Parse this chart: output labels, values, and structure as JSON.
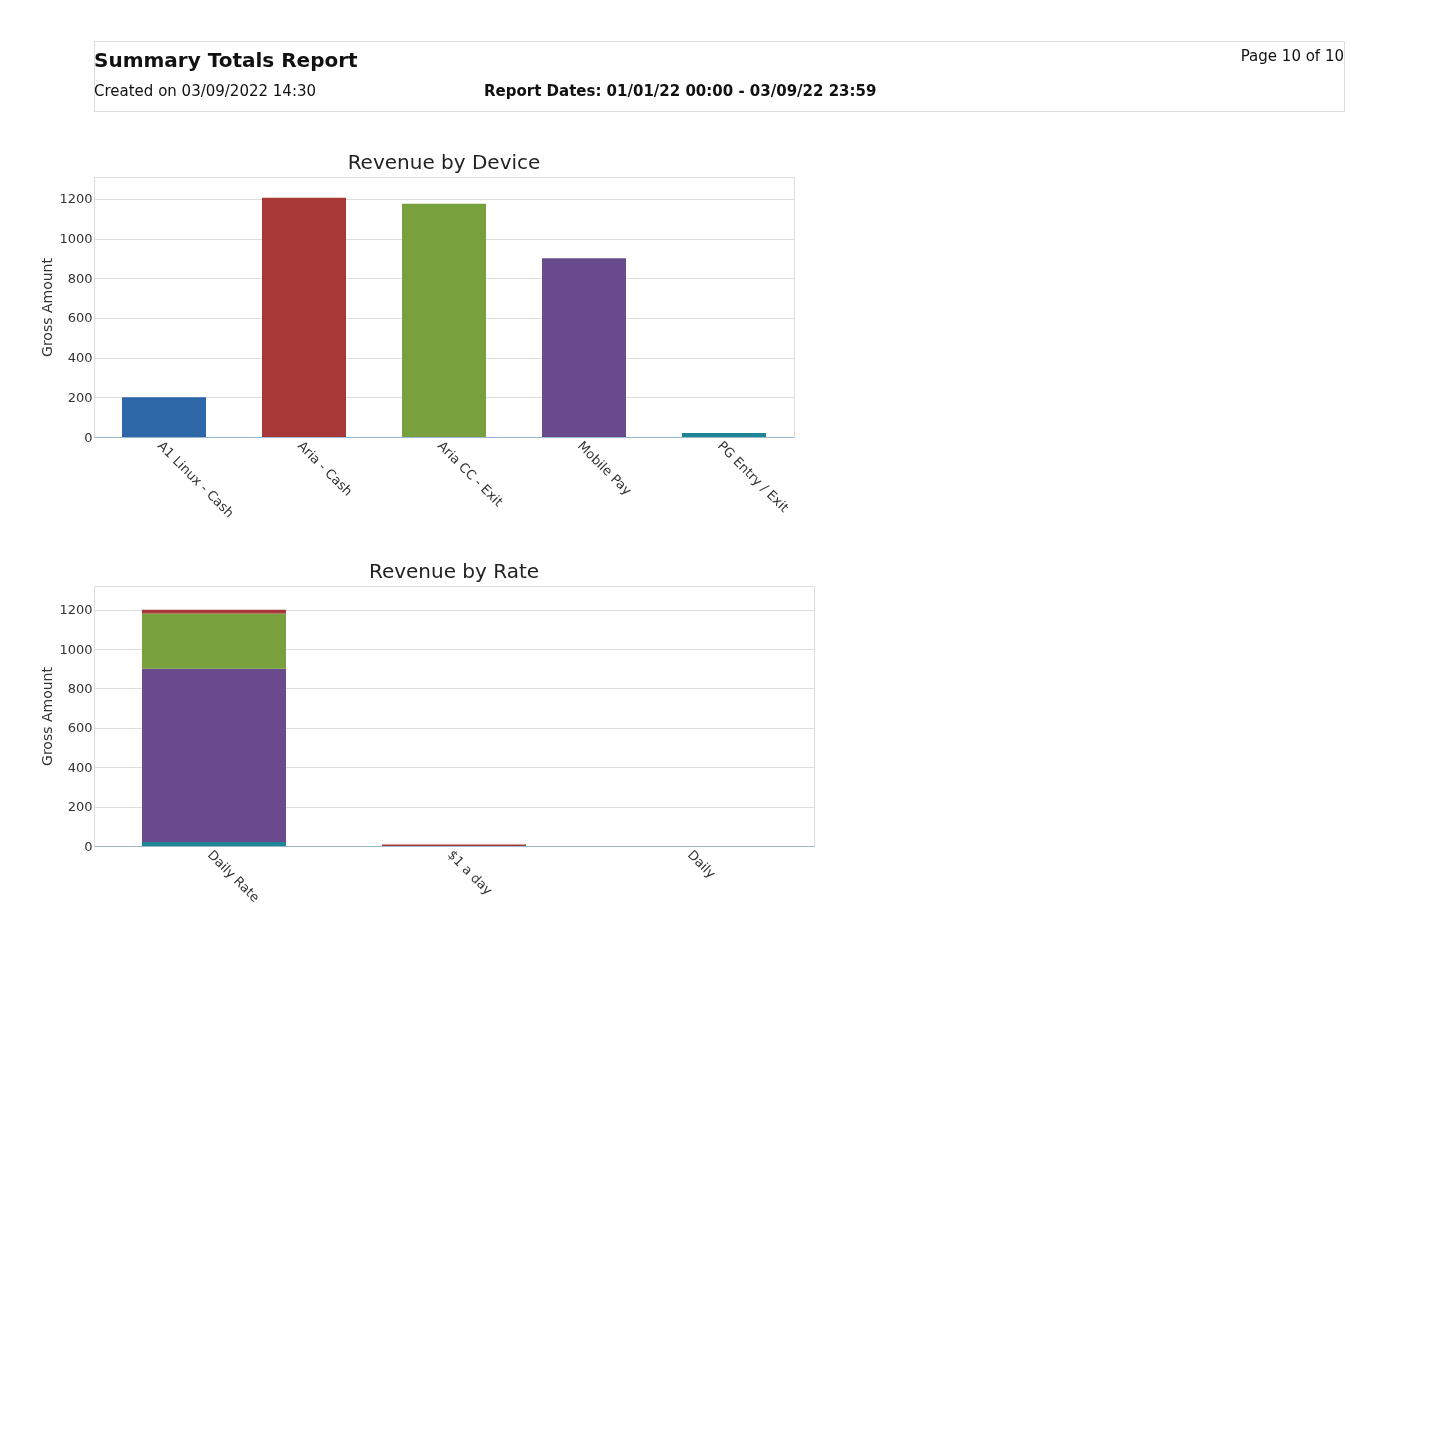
{
  "chart_data": [
    {
      "type": "bar",
      "title": "Revenue by Device",
      "ylabel": "Gross Amount",
      "annotations": [
        "Summary Totals Report",
        "Created on 03/09/2022 14:30",
        "Report Dates: 01/01/22 00:00 - 03/09/22 23:59",
        "Page 10 of 10"
      ],
      "categories": [
        "A1 Linux - Cash",
        "Aria - Cash",
        "Aria CC - Exit",
        "Mobile Pay",
        "PG Entry / Exit"
      ],
      "values": [
        200,
        1205,
        1175,
        900,
        20
      ],
      "colors": [
        "#2e67a8",
        "#a63838",
        "#78a03c",
        "#694a8c",
        "#1d8596"
      ],
      "ylim": [
        0,
        1310
      ],
      "yticks": [
        0,
        200,
        400,
        600,
        800,
        1000,
        1200
      ],
      "grid": "y"
    },
    {
      "type": "bar",
      "title": "Revenue by Rate",
      "ylabel": "Gross Amount",
      "stacked": true,
      "categories": [
        "Daily Rate",
        "$1 a day",
        "Daily"
      ],
      "series": [
        {
          "color": "#1d8596",
          "values": [
            20,
            null,
            null
          ]
        },
        {
          "color": "#694a8c",
          "values": [
            880,
            null,
            null
          ]
        },
        {
          "color": "#78a03c",
          "values": [
            280,
            null,
            null
          ]
        },
        {
          "color": "#a63838",
          "values": [
            20,
            8,
            null
          ]
        }
      ],
      "ylim": [
        0,
        1320
      ],
      "yticks": [
        0,
        200,
        400,
        600,
        800,
        1000,
        1200
      ],
      "grid": "y"
    }
  ]
}
